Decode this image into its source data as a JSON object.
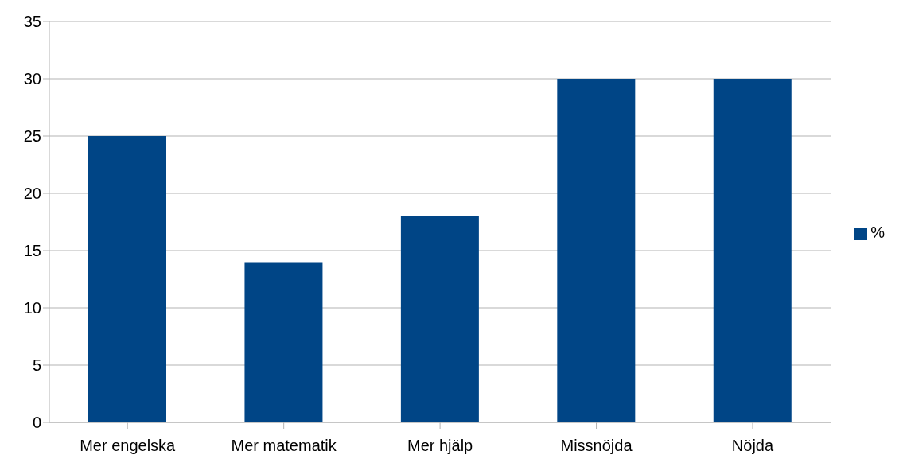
{
  "chart_data": {
    "type": "bar",
    "categories": [
      "Mer engelska",
      "Mer matematik",
      "Mer hjälp",
      "Missnöjda",
      "Nöjda"
    ],
    "series": [
      {
        "name": "%",
        "color": "#004586",
        "values": [
          25,
          14,
          18,
          30,
          30
        ]
      }
    ],
    "ylim": [
      0,
      35
    ],
    "yticks": [
      0,
      5,
      10,
      15,
      20,
      25,
      30,
      35
    ],
    "grid": "y",
    "legend": "right"
  }
}
